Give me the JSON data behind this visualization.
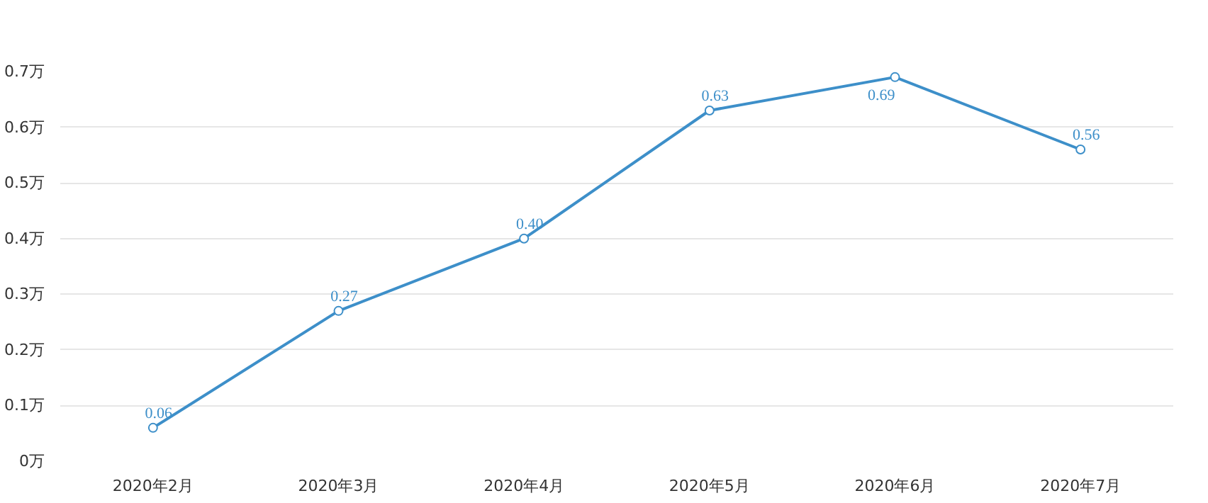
{
  "chart_data": {
    "type": "line",
    "categories": [
      "2020年2月",
      "2020年3月",
      "2020年4月",
      "2020年5月",
      "2020年6月",
      "2020年7月"
    ],
    "series": [
      {
        "color": "#3d8fc9",
        "values": [
          0.06,
          0.27,
          0.4,
          0.63,
          0.69,
          0.56
        ],
        "value_labels": [
          "0.06",
          "0.27",
          "0.40",
          "0.63",
          "0.69",
          "0.56"
        ]
      }
    ],
    "ylim": [
      0,
      0.7
    ],
    "yticks": [
      {
        "value": 0,
        "label": "0万"
      },
      {
        "value": 0.1,
        "label": "0.1万"
      },
      {
        "value": 0.2,
        "label": "0.2万"
      },
      {
        "value": 0.3,
        "label": "0.3万"
      },
      {
        "value": 0.4,
        "label": "0.4万"
      },
      {
        "value": 0.5,
        "label": "0.5万"
      },
      {
        "value": 0.6,
        "label": "0.6万"
      },
      {
        "value": 0.7,
        "label": "0.7万"
      }
    ],
    "grid": "y",
    "marker": "circle",
    "line_style": "solid"
  }
}
